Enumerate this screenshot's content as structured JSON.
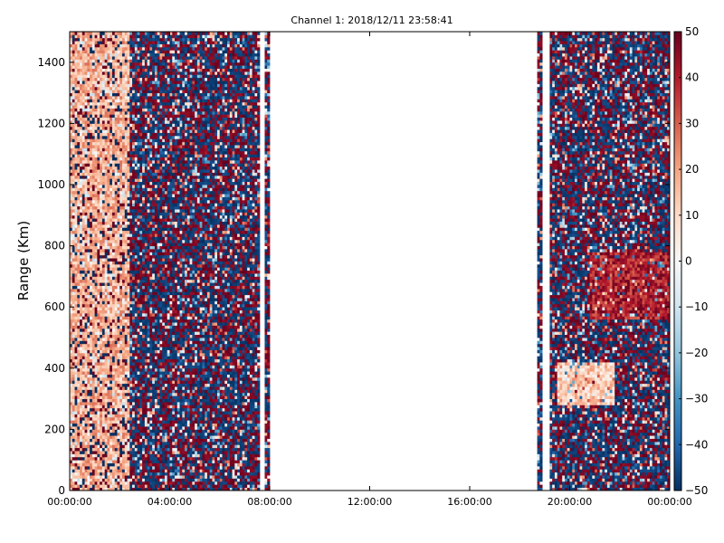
{
  "chart_data": {
    "type": "heatmap",
    "title": "Channel 1: 2018/12/11 23:58:41",
    "xlabel": "",
    "ylabel": "Range (Km)",
    "x_ticks": [
      "00:00:00",
      "04:00:00",
      "08:00:00",
      "12:00:00",
      "16:00:00",
      "20:00:00",
      "00:00:00"
    ],
    "xlim_hours": [
      0,
      24
    ],
    "y_ticks": [
      0,
      200,
      400,
      600,
      800,
      1000,
      1200,
      1400
    ],
    "ylim": [
      0,
      1500
    ],
    "colorbar": {
      "ticks": [
        50,
        40,
        30,
        20,
        10,
        0,
        -10,
        -20,
        -30,
        -40,
        -50
      ],
      "range": [
        -50,
        50
      ],
      "colormap": [
        "#053061",
        "#2166ac",
        "#4393c3",
        "#92c5de",
        "#d1e5f0",
        "#f7f7f7",
        "#fddbc7",
        "#f4a582",
        "#d6604d",
        "#b2182b",
        "#67001f"
      ]
    },
    "data_coverage_hours": [
      [
        0,
        7.6
      ],
      [
        7.75,
        7.95
      ],
      [
        18.65,
        18.85
      ],
      [
        19.25,
        24
      ]
    ],
    "features": [
      {
        "hours": [
          0,
          2.4
        ],
        "range_km": [
          0,
          1500
        ],
        "value_approx": 15
      },
      {
        "hours": [
          2.4,
          7.6
        ],
        "range_km": [
          0,
          1500
        ],
        "value_approx": "mixed -50..50"
      },
      {
        "hours": [
          19.3,
          24
        ],
        "range_km": [
          0,
          1500
        ],
        "value_approx": "mixed -50..50"
      },
      {
        "hours": [
          20.8,
          24
        ],
        "range_km": [
          560,
          780
        ],
        "value_approx": 45
      },
      {
        "hours": [
          19.5,
          21.8
        ],
        "range_km": [
          280,
          420
        ],
        "value_approx": 10
      }
    ]
  }
}
